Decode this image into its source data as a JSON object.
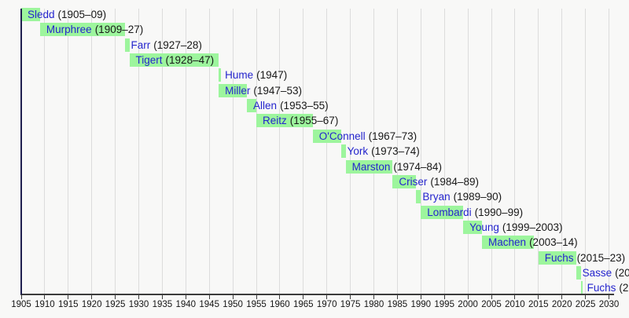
{
  "chart_data": {
    "type": "timeline",
    "description_of_visible_content": "Horizontal timeline (gantt-style) of presidents' tenures, bars descending stepwise from top-left (1905) to bottom-right (2030)",
    "x_axis": {
      "min": 1905,
      "max": 2030,
      "tick_step": 5,
      "ticks": [
        1905,
        1910,
        1915,
        1920,
        1925,
        1930,
        1935,
        1940,
        1945,
        1950,
        1955,
        1960,
        1965,
        1970,
        1975,
        1980,
        1985,
        1990,
        1995,
        2000,
        2005,
        2010,
        2015,
        2020,
        2025,
        2030
      ],
      "grid": true
    },
    "rows": [
      {
        "name": "Sledd",
        "years": "(1905–09)",
        "start": 1905,
        "end": 1909
      },
      {
        "name": "Murphree",
        "years": "(1909–27)",
        "start": 1909,
        "end": 1927
      },
      {
        "name": "Farr",
        "years": "(1927–28)",
        "start": 1927,
        "end": 1928
      },
      {
        "name": "Tigert",
        "years": "(1928–47)",
        "start": 1928,
        "end": 1947
      },
      {
        "name": "Hume",
        "years": "(1947)",
        "start": 1947,
        "end": 1947
      },
      {
        "name": "Miller",
        "years": "(1947–53)",
        "start": 1947,
        "end": 1953
      },
      {
        "name": "Allen",
        "years": "(1953–55)",
        "start": 1953,
        "end": 1955
      },
      {
        "name": "Reitz",
        "years": "(1955–67)",
        "start": 1955,
        "end": 1967
      },
      {
        "name": "O'Connell",
        "years": "(1967–73)",
        "start": 1967,
        "end": 1973
      },
      {
        "name": "York",
        "years": "(1973–74)",
        "start": 1973,
        "end": 1974
      },
      {
        "name": "Marston",
        "years": "(1974–84)",
        "start": 1974,
        "end": 1984
      },
      {
        "name": "Criser",
        "years": "(1984–89)",
        "start": 1984,
        "end": 1989
      },
      {
        "name": "Bryan",
        "years": "(1989–90)",
        "start": 1989,
        "end": 1990
      },
      {
        "name": "Lombardi",
        "years": "(1990–99)",
        "start": 1990,
        "end": 1999
      },
      {
        "name": "Young",
        "years": "(1999–2003)",
        "start": 1999,
        "end": 2003
      },
      {
        "name": "Machen",
        "years": "(2003–14)",
        "start": 2003,
        "end": 2014
      },
      {
        "name": "Fuchs",
        "years": "(2015–23)",
        "start": 2015,
        "end": 2023
      },
      {
        "name": "Sasse",
        "years": "(20",
        "start": 2023,
        "end": 2024
      },
      {
        "name": "Fuchs",
        "years": "(2",
        "start": 2024,
        "end": 2024.4
      }
    ],
    "colors": {
      "background": "#f8f8f7",
      "bar": "#9df59d",
      "name_link": "#2424cd",
      "years_text": "#181818",
      "gridline": "#dcdcdc",
      "start_line": "#1f1f4f",
      "axis": "#3c3c3c",
      "tick_label": "#151515"
    }
  }
}
